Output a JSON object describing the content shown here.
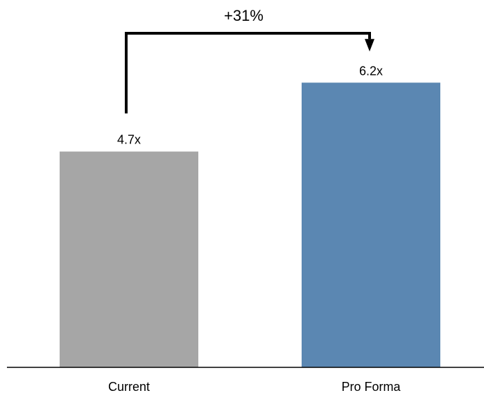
{
  "chart_data": {
    "type": "bar",
    "categories": [
      "Current",
      "Pro Forma"
    ],
    "values": [
      4.7,
      6.2
    ],
    "data_labels": [
      "4.7x",
      "6.2x"
    ],
    "title": "",
    "xlabel": "",
    "ylabel": "",
    "ylim": [
      0,
      8
    ],
    "grid": false,
    "legend": "none",
    "colors": [
      "#a6a6a6",
      "#5b87b2"
    ],
    "annotation": {
      "text": "+31%",
      "from": "Current",
      "to": "Pro Forma",
      "arrow_color": "#000000"
    }
  }
}
